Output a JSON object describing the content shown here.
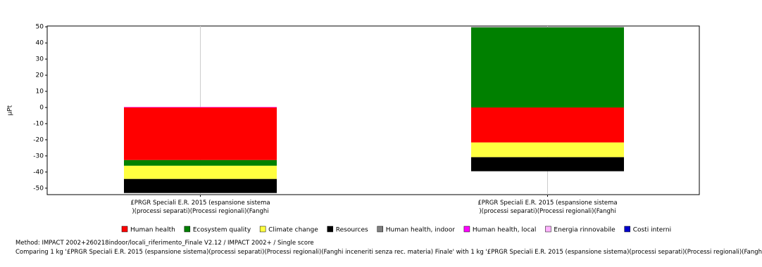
{
  "chart_data": {
    "type": "bar",
    "stacked": true,
    "y_label": "µPt",
    "categories": [
      "£PRGR Speciali E.R. 2015 (espansione sistema )(processi separati)(Processi regionali)(Fanghi",
      "£PRGR Speciali E.R. 2015 (espansione sistema )(processi separati)(Processi regionali)(Fanghi"
    ],
    "series": [
      {
        "name": "Human health",
        "color": "#ff0000",
        "values": [
          -32.6,
          -21.7
        ]
      },
      {
        "name": "Ecosystem quality",
        "color": "#008000",
        "values": [
          -3.5,
          49.6
        ]
      },
      {
        "name": "Climate change",
        "color": "#ffff40",
        "values": [
          -8.2,
          -9.1
        ]
      },
      {
        "name": "Resources",
        "color": "#000000",
        "values": [
          -8.7,
          -8.7
        ]
      },
      {
        "name": "Human health, indoor",
        "color": "#808080",
        "values": [
          0,
          0.3
        ]
      },
      {
        "name": "Human health, local",
        "color": "#ff00ff",
        "values": [
          0.3,
          0
        ]
      },
      {
        "name": "Energia rinnovabile",
        "color": "#ffb3ff",
        "values": [
          0,
          0
        ]
      },
      {
        "name": "Costi interni",
        "color": "#0000cc",
        "values": [
          0,
          0
        ]
      }
    ],
    "ylim": [
      -54,
      50.5
    ],
    "yticks": [
      -50,
      -40,
      -30,
      -20,
      -10,
      0,
      10,
      20,
      30,
      40,
      50
    ],
    "grid": true,
    "legend": "bottom",
    "method": "Method: IMPACT 2002+260218indoor/locali_riferimento_Finale V2.12 / IMPACT 2002+ / Single score",
    "comparison": "Comparing 1 kg '£PRGR Speciali E.R. 2015 (espansione sistema)(processi separati)(Processi regionali)(Fanghi inceneriti senza rec. materia) Finale' with 1 kg '£PRGR Speciali E.R. 2015 (espansione sistema)(processi separati)(Processi regionali)(Fangh"
  }
}
